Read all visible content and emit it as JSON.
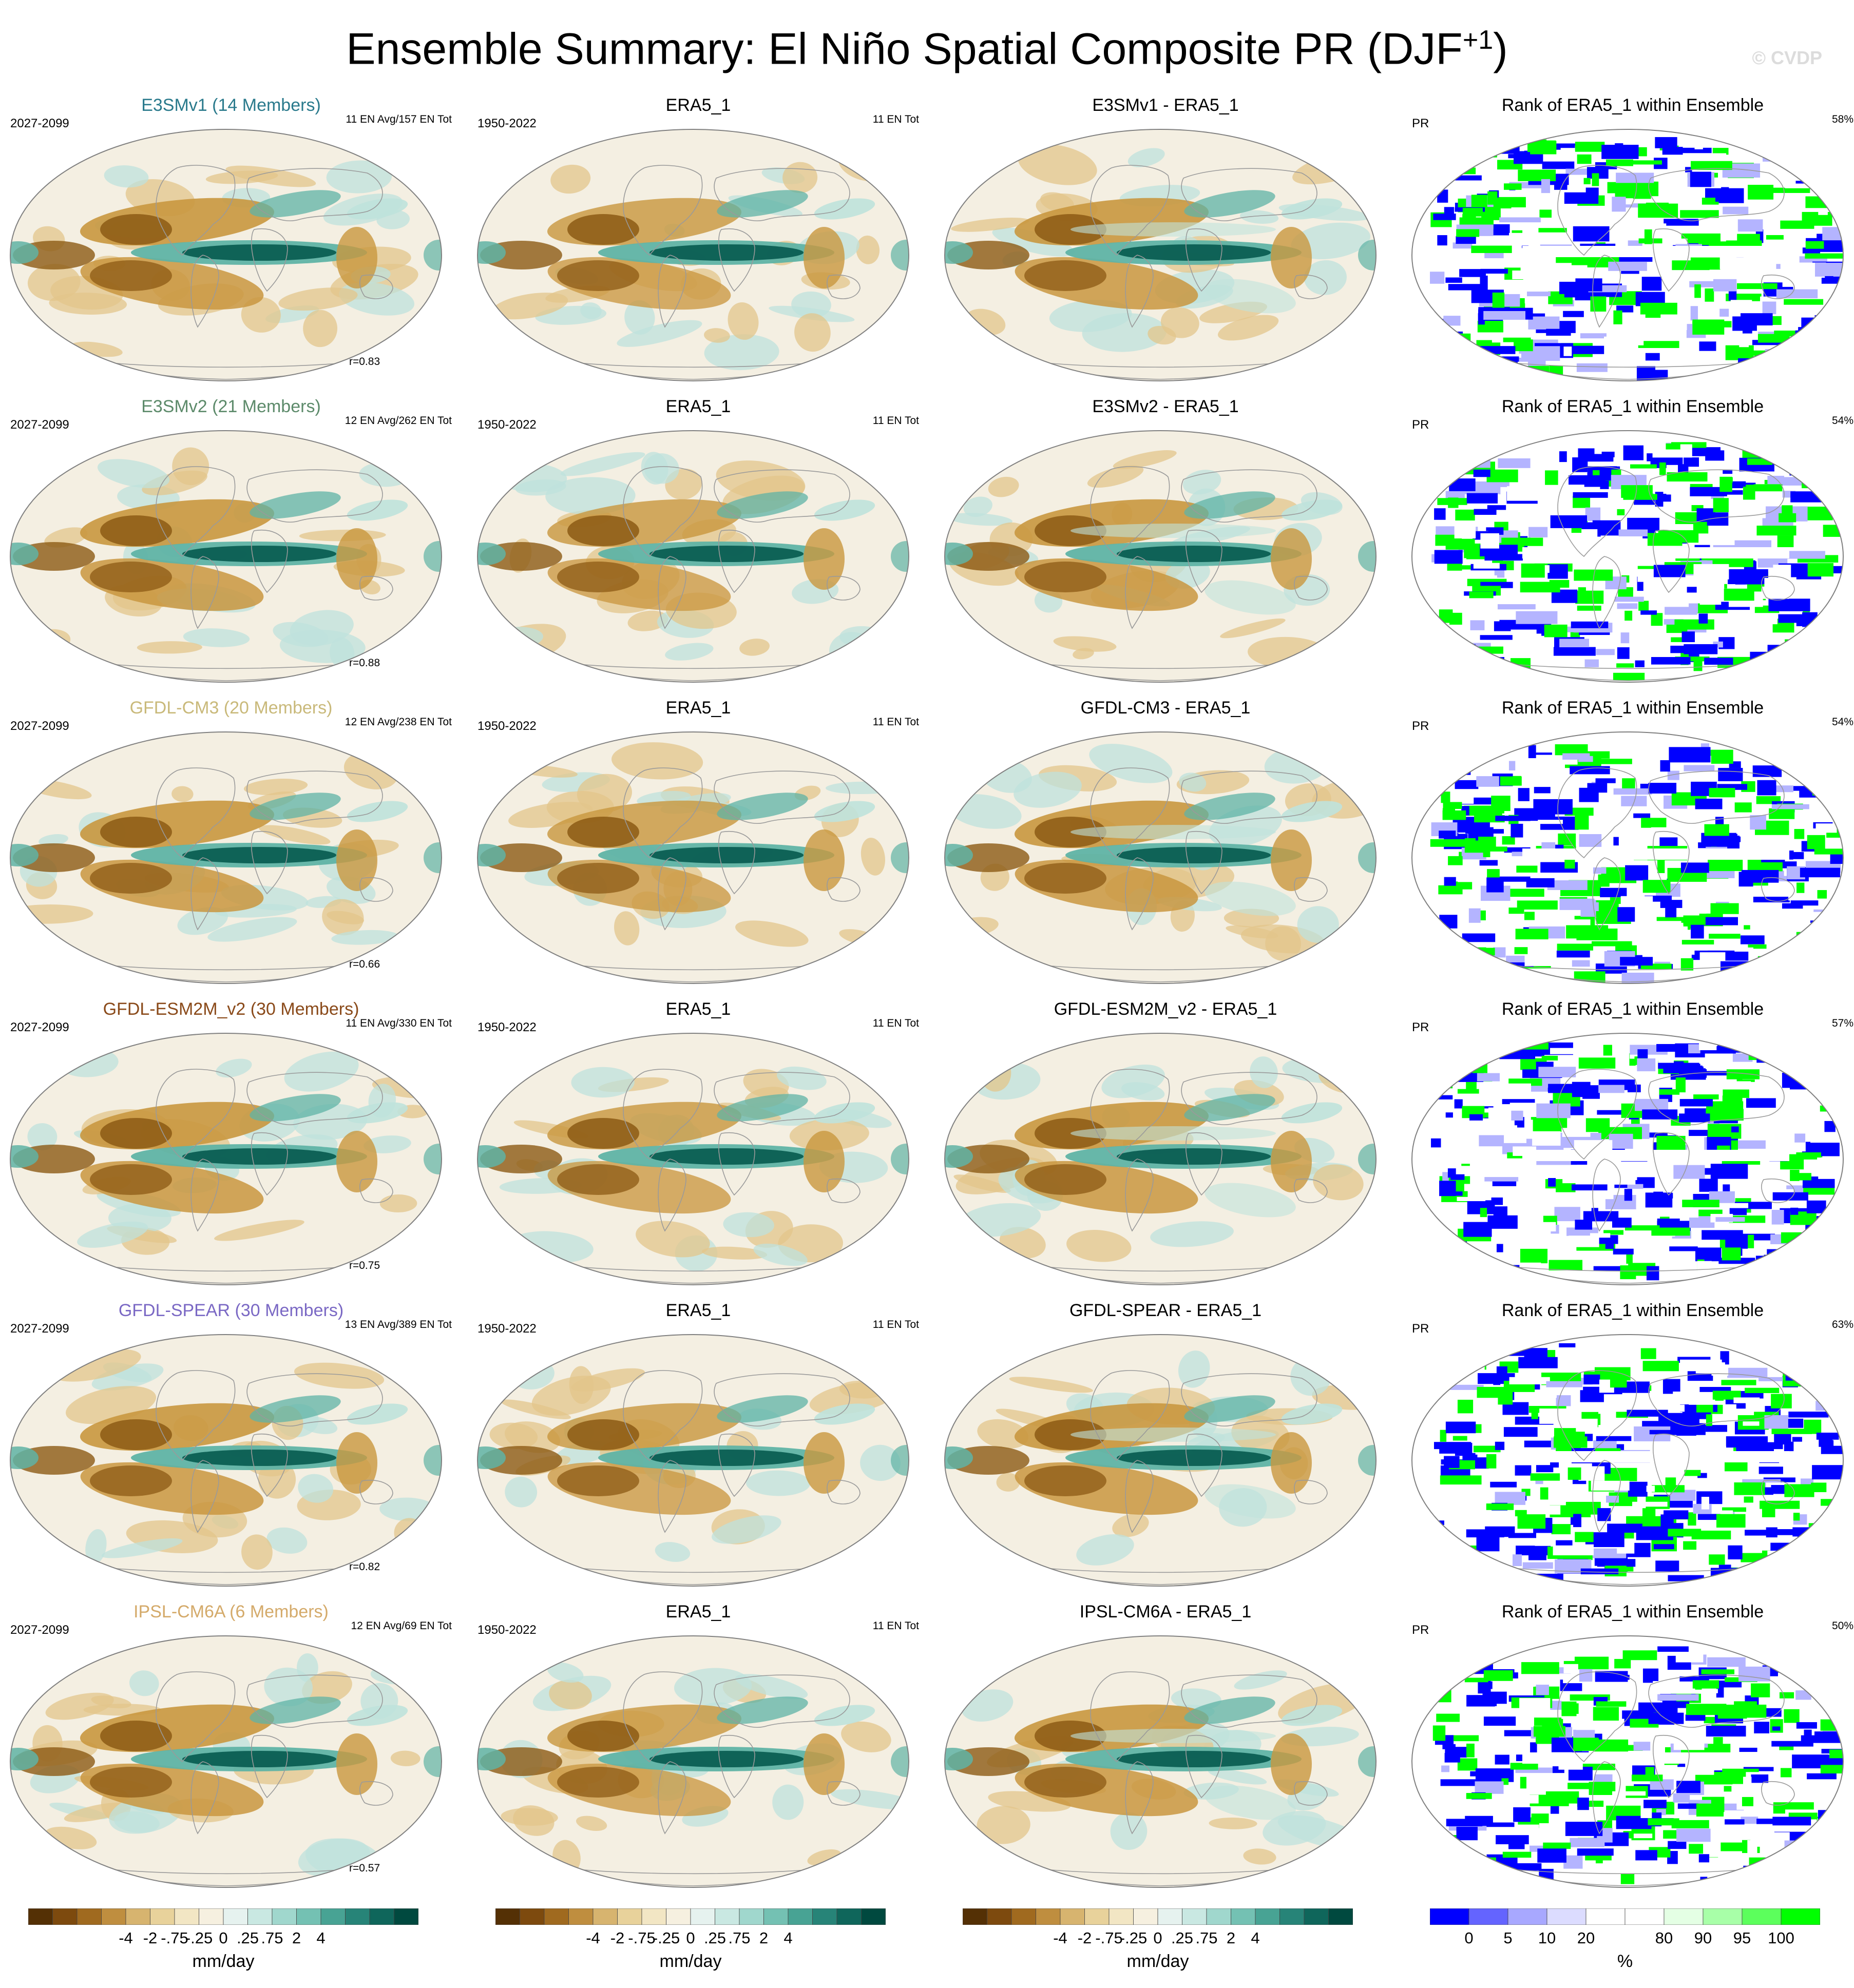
{
  "figure": {
    "title": "Ensemble Summary: El Niño Spatial Composite PR (DJF",
    "title_sup": "+1",
    "title_close": ")",
    "watermark": "© CVDP"
  },
  "rows": [
    {
      "model_title": "E3SMv1 (14 Members)",
      "model_color": "#2a7a8c",
      "period": "2027-2099",
      "counts": "11 EN Avg/157 EN Tot",
      "corr": "r=0.83",
      "obs_title": "ERA5_1",
      "obs_period": "1950-2022",
      "obs_counts": "11 EN Tot",
      "diff_title": "E3SMv1 - ERA5_1",
      "rank_title": "Rank of ERA5_1 within Ensemble",
      "rank_var": "PR",
      "rank_pct": "58%"
    },
    {
      "model_title": "E3SMv2 (21 Members)",
      "model_color": "#5c8a6a",
      "period": "2027-2099",
      "counts": "12 EN Avg/262 EN Tot",
      "corr": "r=0.88",
      "obs_title": "ERA5_1",
      "obs_period": "1950-2022",
      "obs_counts": "11 EN Tot",
      "diff_title": "E3SMv2 - ERA5_1",
      "rank_title": "Rank of ERA5_1 within Ensemble",
      "rank_var": "PR",
      "rank_pct": "54%"
    },
    {
      "model_title": "GFDL-CM3 (20 Members)",
      "model_color": "#c9b97a",
      "period": "2027-2099",
      "counts": "12 EN Avg/238 EN Tot",
      "corr": "r=0.66",
      "obs_title": "ERA5_1",
      "obs_period": "1950-2022",
      "obs_counts": "11 EN Tot",
      "diff_title": "GFDL-CM3 - ERA5_1",
      "rank_title": "Rank of ERA5_1 within Ensemble",
      "rank_var": "PR",
      "rank_pct": "54%"
    },
    {
      "model_title": "GFDL-ESM2M_v2 (30 Members)",
      "model_color": "#8a4a1a",
      "period": "2027-2099",
      "counts": "11 EN Avg/330 EN Tot",
      "corr": "r=0.75",
      "obs_title": "ERA5_1",
      "obs_period": "1950-2022",
      "obs_counts": "11 EN Tot",
      "diff_title": "GFDL-ESM2M_v2 - ERA5_1",
      "rank_title": "Rank of ERA5_1 within Ensemble",
      "rank_var": "PR",
      "rank_pct": "57%"
    },
    {
      "model_title": "GFDL-SPEAR (30 Members)",
      "model_color": "#7a68c4",
      "period": "2027-2099",
      "counts": "13 EN Avg/389 EN Tot",
      "corr": "r=0.82",
      "obs_title": "ERA5_1",
      "obs_period": "1950-2022",
      "obs_counts": "11 EN Tot",
      "diff_title": "GFDL-SPEAR - ERA5_1",
      "rank_title": "Rank of ERA5_1 within Ensemble",
      "rank_var": "PR",
      "rank_pct": "63%"
    },
    {
      "model_title": "IPSL-CM6A (6 Members)",
      "model_color": "#d4aa6a",
      "period": "2027-2099",
      "counts": "12 EN Avg/69 EN Tot",
      "corr": "r=0.57",
      "obs_title": "ERA5_1",
      "obs_period": "1950-2022",
      "obs_counts": "11 EN Tot",
      "diff_title": "IPSL-CM6A - ERA5_1",
      "rank_title": "Rank of ERA5_1 within Ensemble",
      "rank_var": "PR",
      "rank_pct": "50%"
    }
  ],
  "colorbars": {
    "pr": {
      "colors": [
        "#543005",
        "#7d4a0e",
        "#a06a1f",
        "#bf8e3f",
        "#d7b46f",
        "#e8d29b",
        "#f2e6c4",
        "#f6f0e0",
        "#e6f2ef",
        "#c9e8e2",
        "#a0d7cd",
        "#74c1b3",
        "#48a394",
        "#278478",
        "#0f665b",
        "#00493f"
      ],
      "ticks": [
        "-4",
        "-2",
        "-.75",
        "-.25",
        "0",
        ".25",
        ".75",
        "2",
        "4"
      ],
      "unit": "mm/day"
    },
    "rank": {
      "colors": [
        "#0000ff",
        "#6464ff",
        "#a8a8ff",
        "#dcdcff",
        "#ffffff",
        "#ffffff",
        "#e4ffe4",
        "#a8ffa8",
        "#5cff5c",
        "#00ff00"
      ],
      "ticks": [
        "0",
        "5",
        "10",
        "20",
        "80",
        "90",
        "95",
        "100"
      ],
      "unit": "%"
    }
  },
  "map_colors": {
    "ocean_bg": "#f4efe2",
    "dry_strong": "#8c5a14",
    "dry_mid": "#c9973f",
    "dry_light": "#e3c68b",
    "wet_light": "#bfe2dc",
    "wet_mid": "#5fb3a5",
    "wet_strong": "#0b5e52",
    "coast": "#9a9a9a",
    "rank_low": "#0000ff",
    "rank_high": "#00ff00",
    "rank_lowish": "#b4b4ff"
  }
}
